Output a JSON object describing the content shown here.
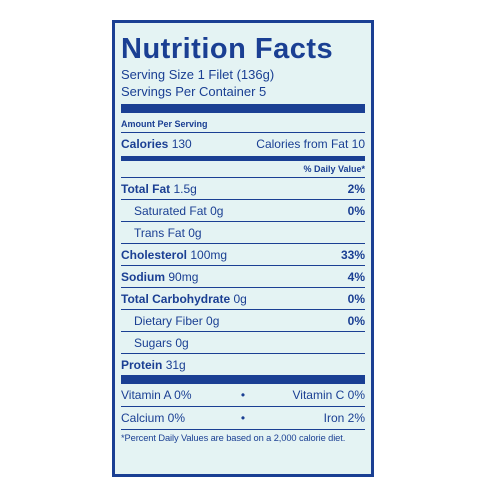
{
  "title": "Nutrition Facts",
  "serving_size": "Serving Size 1 Filet (136g)",
  "servings_per_container": "Servings Per Container 5",
  "amount_per_serving": "Amount Per Serving",
  "calories": {
    "label": "Calories",
    "value": "130",
    "from_fat": "Calories from Fat 10"
  },
  "daily_value_header": "% Daily Value*",
  "nutrients": [
    {
      "label": "Total Fat",
      "amount": "1.5g",
      "dv": "2%"
    },
    {
      "label": "Saturated Fat",
      "amount": "0g",
      "dv": "0%"
    },
    {
      "label": "Trans Fat",
      "amount": "0g",
      "dv": ""
    },
    {
      "label": "Cholesterol",
      "amount": "100mg",
      "dv": "33%"
    },
    {
      "label": "Sodium",
      "amount": "90mg",
      "dv": "4%"
    },
    {
      "label": "Total Carbohydrate",
      "amount": "0g",
      "dv": "0%"
    },
    {
      "label": "Dietary Fiber",
      "amount": "0g",
      "dv": "0%"
    },
    {
      "label": "Sugars",
      "amount": "0g",
      "dv": ""
    },
    {
      "label": "Protein",
      "amount": "31g",
      "dv": ""
    }
  ],
  "vitamins": [
    {
      "left": "Vitamin A 0%",
      "separator": "•",
      "right": "Vitamin C 0%"
    },
    {
      "left": "Calcium 0%",
      "separator": "•",
      "right": "Iron 2%"
    }
  ],
  "footnote": "*Percent Daily Values are based on a 2,000 calorie diet.",
  "colors": {
    "ink": "#1a3f93",
    "background": "#e4f3f3"
  }
}
